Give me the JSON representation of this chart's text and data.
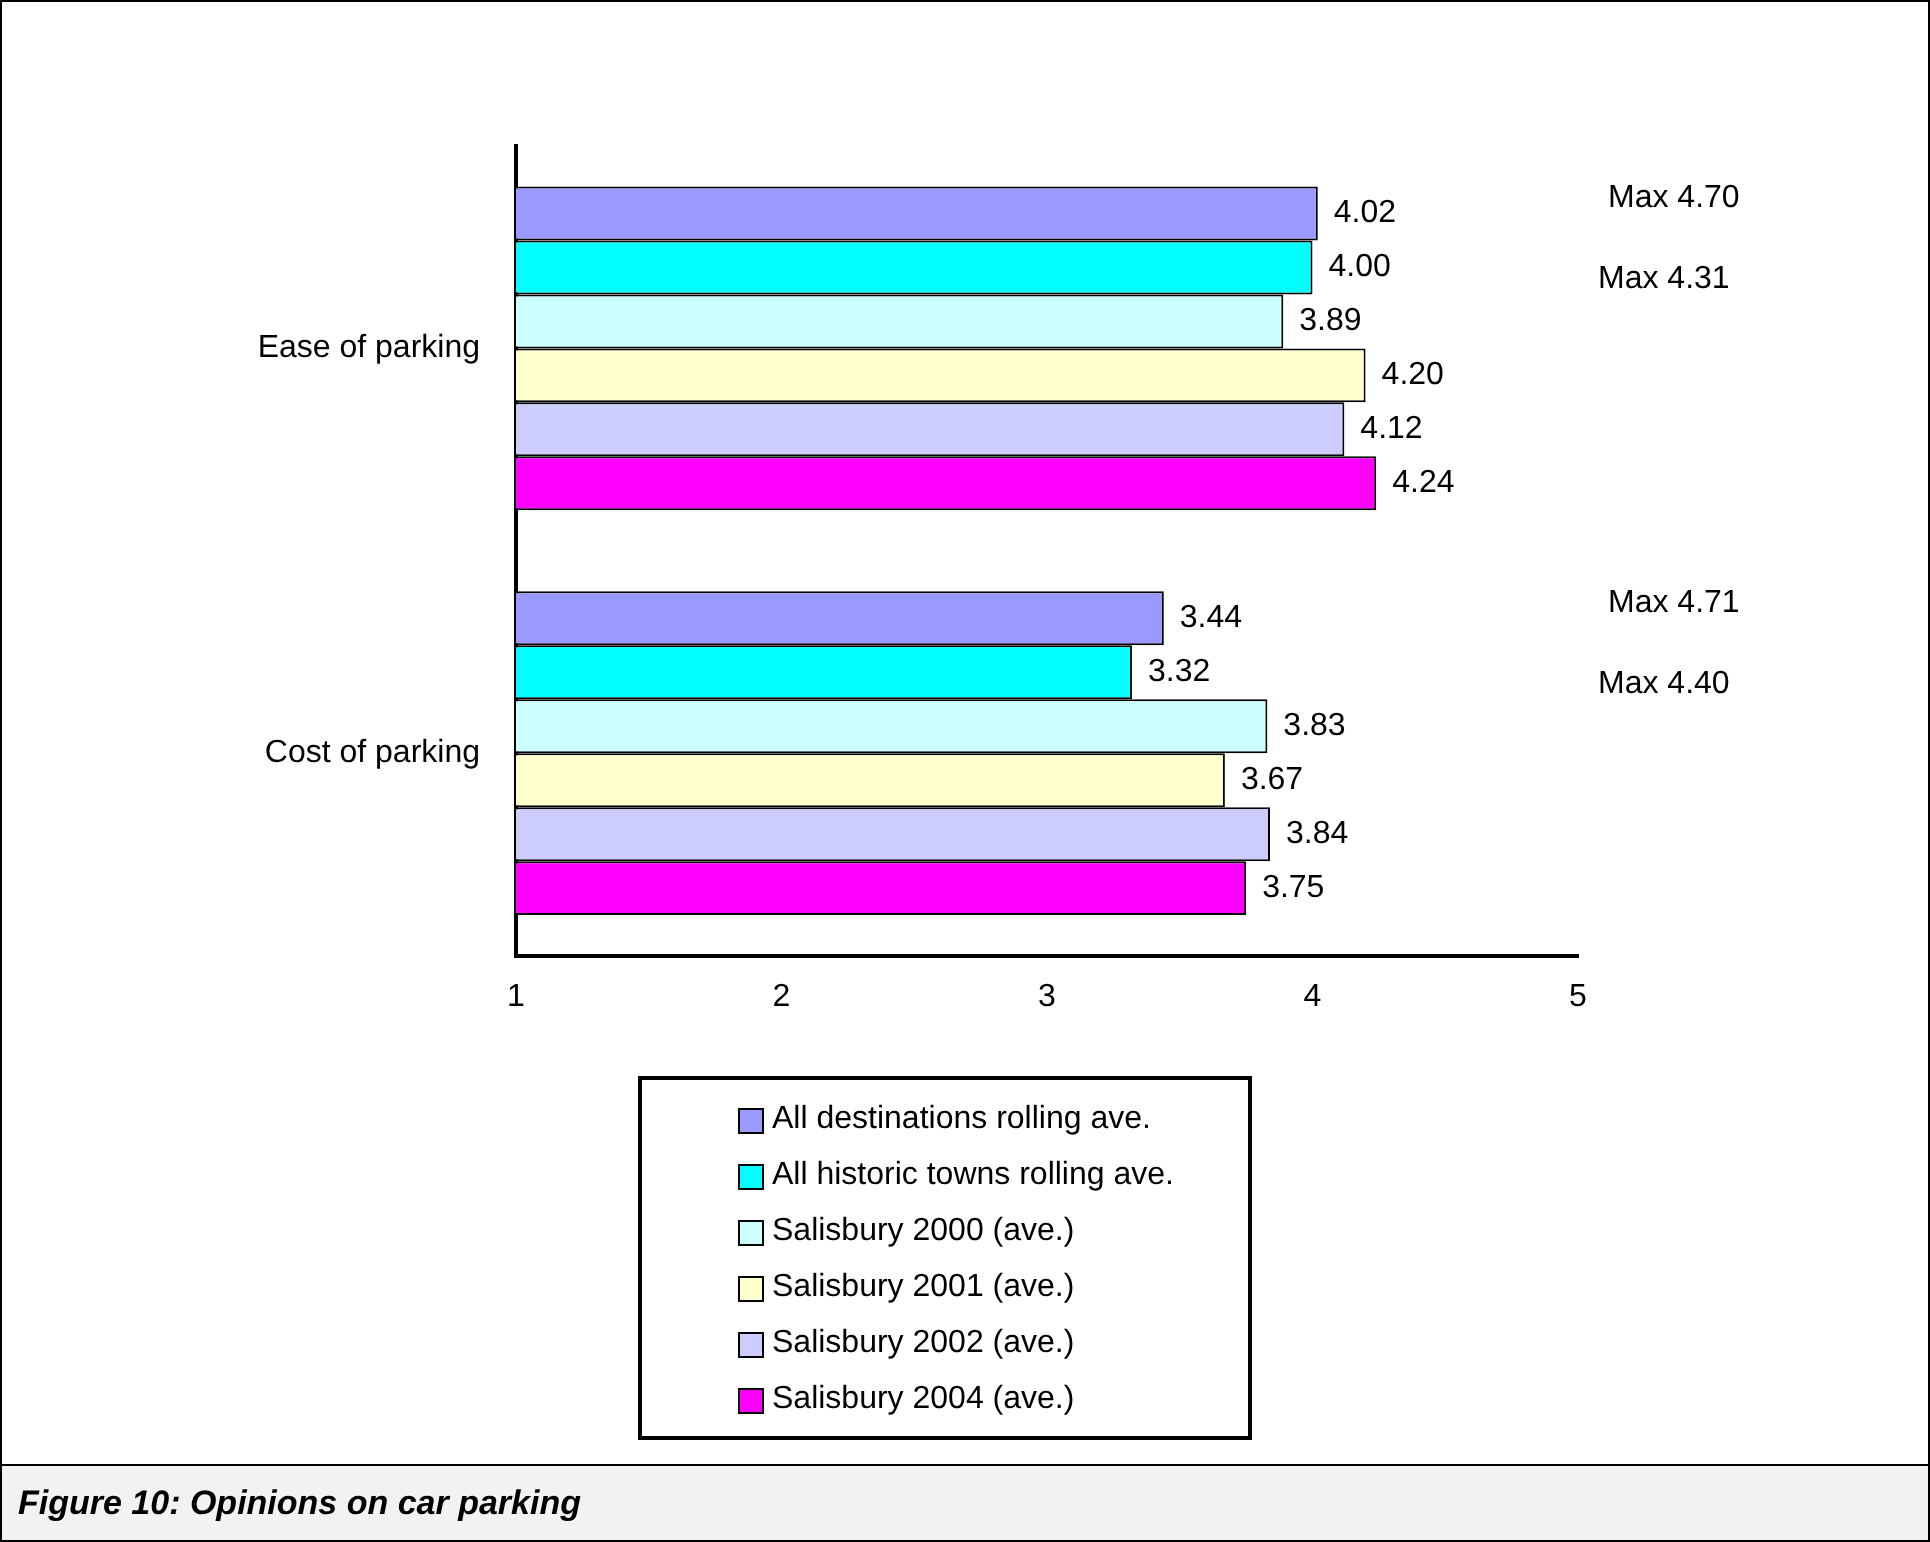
{
  "chart_data": {
    "type": "bar",
    "orientation": "horizontal",
    "title": "Figure 10: Opinions on car parking",
    "categories": [
      "Ease of parking",
      "Cost of parking"
    ],
    "series": [
      {
        "name": "All destinations rolling ave.",
        "color": "#9999ff",
        "values": [
          4.02,
          3.44
        ],
        "value_labels": [
          "4.02",
          "3.44"
        ]
      },
      {
        "name": "All historic towns rolling ave.",
        "color": "#00ffff",
        "values": [
          4.0,
          3.32
        ],
        "value_labels": [
          "4.00",
          "3.32"
        ]
      },
      {
        "name": "Salisbury 2000 (ave.)",
        "color": "#ccffff",
        "values": [
          3.89,
          3.83
        ],
        "value_labels": [
          "3.89",
          "3.83"
        ]
      },
      {
        "name": "Salisbury 2001 (ave.)",
        "color": "#ffffcc",
        "values": [
          4.2,
          3.67
        ],
        "value_labels": [
          "4.20",
          "3.67"
        ]
      },
      {
        "name": "Salisbury 2002 (ave.)",
        "color": "#ccccff",
        "values": [
          4.12,
          3.84
        ],
        "value_labels": [
          "4.12",
          "3.84"
        ]
      },
      {
        "name": "Salisbury 2004 (ave.)",
        "color": "#ff00ff",
        "values": [
          4.24,
          3.75
        ],
        "value_labels": [
          "4.24",
          "3.75"
        ]
      }
    ],
    "xlim": [
      1,
      5
    ],
    "xticks": [
      1,
      2,
      3,
      4,
      5
    ],
    "grid": false,
    "legend": "bottom",
    "annotations": [
      "Max 4.70",
      "Max 4.31",
      "Max 4.71",
      "Max 4.40"
    ]
  }
}
